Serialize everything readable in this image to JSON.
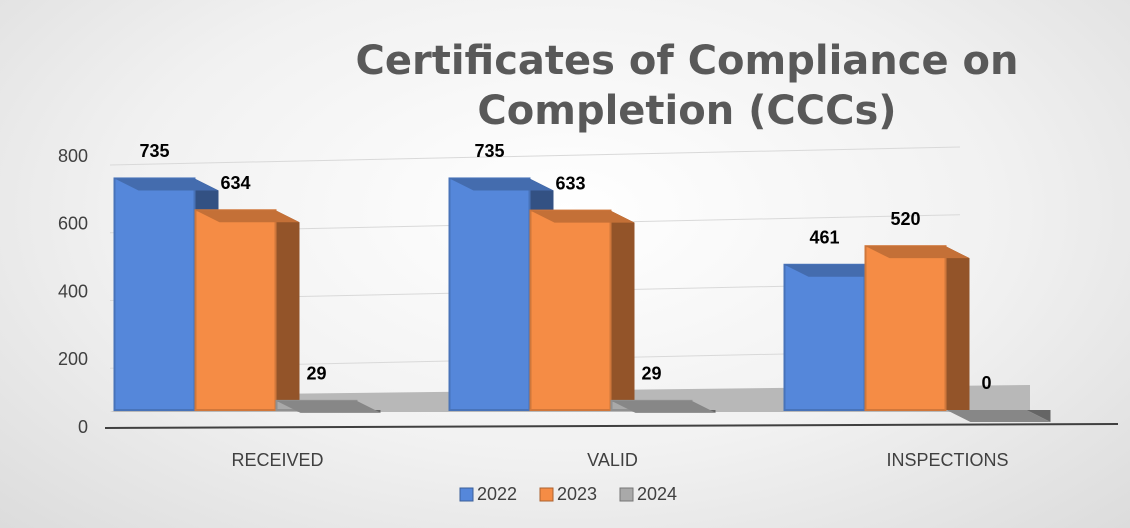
{
  "chart_data": {
    "type": "bar",
    "title": "Certificates of Compliance on Completion (CCCs)",
    "categories": [
      "RECEIVED",
      "VALID",
      "INSPECTIONS"
    ],
    "series": [
      {
        "name": "2022",
        "color": "#5587da",
        "values": [
          735,
          735,
          461
        ]
      },
      {
        "name": "2023",
        "color": "#f58c45",
        "values": [
          634,
          633,
          520
        ]
      },
      {
        "name": "2024",
        "color": "#a9a9a9",
        "values": [
          29,
          29,
          0
        ]
      }
    ],
    "ylim": [
      0,
      800
    ],
    "yticks": [
      0,
      200,
      400,
      600,
      800
    ],
    "grid": true,
    "legend": "bottom"
  }
}
